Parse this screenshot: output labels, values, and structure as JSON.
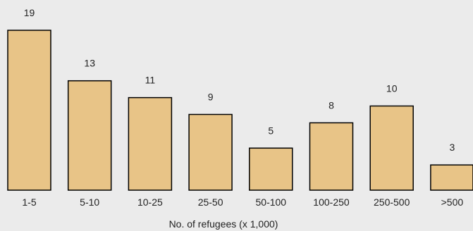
{
  "chart_data": {
    "type": "bar",
    "categories": [
      "1-5",
      "5-10",
      "10-25",
      "25-50",
      "50-100",
      "100-250",
      "250-500",
      ">500"
    ],
    "values": [
      19,
      13,
      11,
      9,
      5,
      8,
      10,
      3
    ],
    "xlabel": "No. of refugees (x 1,000)",
    "ylabel": "",
    "ylim": [
      0,
      19
    ],
    "grid": false,
    "legend": "none",
    "colors": {
      "background": "#ebebeb",
      "bar_fill": "#e8c487",
      "bar_stroke": "#000000",
      "text": "#222222"
    }
  }
}
